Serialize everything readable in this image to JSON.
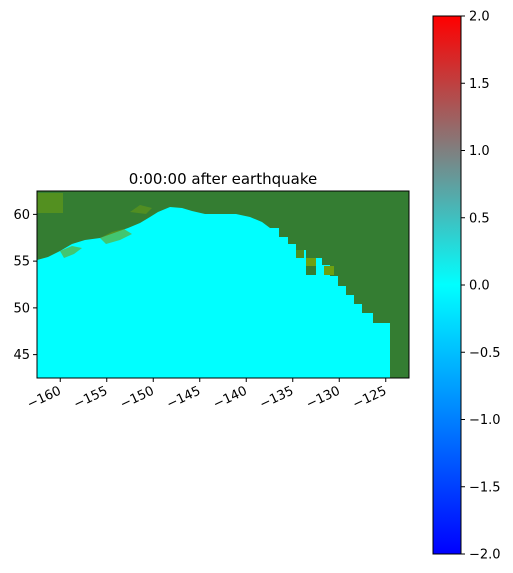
{
  "title": "0:00:00 after earthquake",
  "map": {
    "x_ticks": [
      -160,
      -155,
      -150,
      -145,
      -140,
      -135,
      -130,
      -125
    ],
    "y_ticks": [
      45,
      50,
      55,
      60
    ],
    "x_range": [
      -162.5,
      -122.5
    ],
    "y_range": [
      42.5,
      62.5
    ],
    "land_color": "#347d32",
    "water_color": "#00ffff",
    "tile_colors": [
      "#6ea012",
      "#4c9022"
    ]
  },
  "colorbar": {
    "range": [
      -2.0,
      2.0
    ],
    "tick_values": [
      2.0,
      1.5,
      1.0,
      0.5,
      0.0,
      -0.5,
      -1.0,
      -1.5,
      -2.0
    ],
    "tick_labels": [
      "2.0",
      "1.5",
      "1.0",
      "0.5",
      "0.0",
      "−0.5",
      "−1.0",
      "−1.5",
      "−2.0"
    ],
    "colors": [
      "#0000ff",
      "#00ffff",
      "#ff0000"
    ]
  },
  "chart_data": {
    "type": "heatmap",
    "title": "0:00:00 after earthquake",
    "xlabel": "",
    "ylabel": "",
    "xlim": [
      -162.5,
      -122.5
    ],
    "ylim": [
      42.5,
      62.5
    ],
    "colorbar_range": [
      -2.0,
      2.0
    ],
    "values_shown": "0.0 everywhere on water at t=0"
  }
}
